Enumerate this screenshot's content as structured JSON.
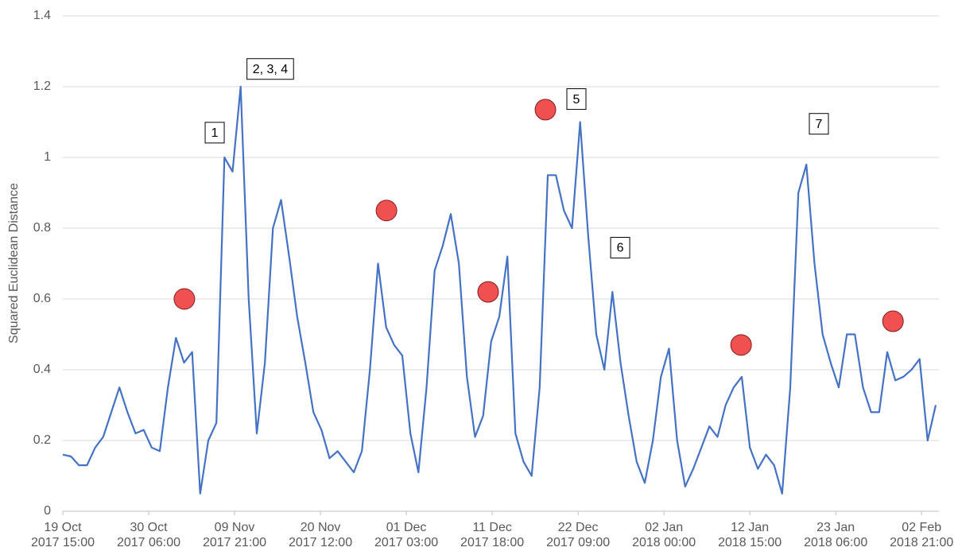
{
  "chart_data": {
    "type": "line",
    "ylabel": "Squared Euclidean Distance",
    "color": "#4472c4",
    "grid": true,
    "ylim": [
      0,
      1.4
    ],
    "yticks": [
      0,
      0.2,
      0.4,
      0.6,
      0.8,
      1,
      1.2,
      1.4
    ],
    "xlim": [
      "2017-10-19 15:00",
      "2018-02-04 15:00"
    ],
    "xticks": [
      {
        "value": "2017-10-19 15:00",
        "label": "19 Oct 2017 15:00"
      },
      {
        "value": "2017-10-30 06:00",
        "label": "30 Oct 2017 06:00"
      },
      {
        "value": "2017-11-09 21:00",
        "label": "09 Nov 2017 21:00"
      },
      {
        "value": "2017-11-20 12:00",
        "label": "20 Nov 2017 12:00"
      },
      {
        "value": "2017-12-01 03:00",
        "label": "01 Dec 2017 03:00"
      },
      {
        "value": "2017-12-11 18:00",
        "label": "11 Dec 2017 18:00"
      },
      {
        "value": "2017-12-22 09:00",
        "label": "22 Dec 2017 09:00"
      },
      {
        "value": "2018-01-02 00:00",
        "label": "02 Jan 2018 00:00"
      },
      {
        "value": "2018-01-12 15:00",
        "label": "12 Jan 2018 15:00"
      },
      {
        "value": "2018-01-23 06:00",
        "label": "23 Jan 2018 06:00"
      },
      {
        "value": "2018-02-02 21:00",
        "label": "02 Feb 2018 21:00"
      }
    ],
    "x": [
      "2017-10-19 15:00",
      "2017-10-20 15:00",
      "2017-10-21 15:00",
      "2017-10-22 15:00",
      "2017-10-23 15:00",
      "2017-10-24 15:00",
      "2017-10-25 15:00",
      "2017-10-26 15:00",
      "2017-10-27 15:00",
      "2017-10-28 15:00",
      "2017-10-29 15:00",
      "2017-10-30 15:00",
      "2017-10-31 15:00",
      "2017-11-01 15:00",
      "2017-11-02 15:00",
      "2017-11-03 15:00",
      "2017-11-04 15:00",
      "2017-11-05 15:00",
      "2017-11-06 15:00",
      "2017-11-07 15:00",
      "2017-11-08 15:00",
      "2017-11-09 15:00",
      "2017-11-10 15:00",
      "2017-11-11 15:00",
      "2017-11-12 15:00",
      "2017-11-13 15:00",
      "2017-11-14 15:00",
      "2017-11-15 15:00",
      "2017-11-16 15:00",
      "2017-11-17 15:00",
      "2017-11-18 15:00",
      "2017-11-19 15:00",
      "2017-11-20 15:00",
      "2017-11-21 15:00",
      "2017-11-22 15:00",
      "2017-11-23 15:00",
      "2017-11-24 15:00",
      "2017-11-25 15:00",
      "2017-11-26 15:00",
      "2017-11-27 15:00",
      "2017-11-28 15:00",
      "2017-11-29 15:00",
      "2017-11-30 15:00",
      "2017-12-01 15:00",
      "2017-12-02 15:00",
      "2017-12-03 15:00",
      "2017-12-04 15:00",
      "2017-12-05 15:00",
      "2017-12-06 15:00",
      "2017-12-07 15:00",
      "2017-12-08 15:00",
      "2017-12-09 15:00",
      "2017-12-10 15:00",
      "2017-12-11 15:00",
      "2017-12-12 15:00",
      "2017-12-13 15:00",
      "2017-12-14 15:00",
      "2017-12-15 15:00",
      "2017-12-16 15:00",
      "2017-12-17 15:00",
      "2017-12-18 15:00",
      "2017-12-19 15:00",
      "2017-12-20 15:00",
      "2017-12-21 15:00",
      "2017-12-22 15:00",
      "2017-12-23 15:00",
      "2017-12-24 15:00",
      "2017-12-25 15:00",
      "2017-12-26 15:00",
      "2017-12-27 15:00",
      "2017-12-28 15:00",
      "2017-12-29 15:00",
      "2017-12-30 15:00",
      "2017-12-31 15:00",
      "2018-01-01 15:00",
      "2018-01-02 15:00",
      "2018-01-03 15:00",
      "2018-01-04 15:00",
      "2018-01-05 15:00",
      "2018-01-06 15:00",
      "2018-01-07 15:00",
      "2018-01-08 15:00",
      "2018-01-09 15:00",
      "2018-01-10 15:00",
      "2018-01-11 15:00",
      "2018-01-12 15:00",
      "2018-01-13 15:00",
      "2018-01-14 15:00",
      "2018-01-15 15:00",
      "2018-01-16 15:00",
      "2018-01-17 15:00",
      "2018-01-18 15:00",
      "2018-01-19 15:00",
      "2018-01-20 15:00",
      "2018-01-21 15:00",
      "2018-01-22 15:00",
      "2018-01-23 15:00",
      "2018-01-24 15:00",
      "2018-01-25 15:00",
      "2018-01-26 15:00",
      "2018-01-27 15:00",
      "2018-01-28 15:00",
      "2018-01-29 15:00",
      "2018-01-30 15:00",
      "2018-01-31 15:00",
      "2018-02-01 15:00",
      "2018-02-02 15:00",
      "2018-02-03 15:00",
      "2018-02-04 15:00"
    ],
    "values": [
      0.16,
      0.155,
      0.13,
      0.13,
      0.18,
      0.21,
      0.28,
      0.35,
      0.28,
      0.22,
      0.23,
      0.18,
      0.17,
      0.35,
      0.49,
      0.42,
      0.45,
      0.05,
      0.2,
      0.25,
      1.0,
      0.96,
      1.2,
      0.6,
      0.22,
      0.42,
      0.8,
      0.88,
      0.72,
      0.55,
      0.42,
      0.28,
      0.23,
      0.15,
      0.17,
      0.14,
      0.11,
      0.17,
      0.4,
      0.7,
      0.52,
      0.47,
      0.44,
      0.22,
      0.11,
      0.35,
      0.68,
      0.75,
      0.84,
      0.7,
      0.38,
      0.21,
      0.27,
      0.48,
      0.55,
      0.72,
      0.22,
      0.14,
      0.1,
      0.35,
      0.95,
      0.95,
      0.85,
      0.8,
      1.1,
      0.78,
      0.5,
      0.4,
      0.62,
      0.42,
      0.27,
      0.14,
      0.08,
      0.2,
      0.38,
      0.46,
      0.2,
      0.07,
      0.12,
      0.18,
      0.24,
      0.21,
      0.3,
      0.35,
      0.38,
      0.18,
      0.12,
      0.16,
      0.13,
      0.05,
      0.35,
      0.9,
      0.98,
      0.7,
      0.5,
      0.42,
      0.35,
      0.5,
      0.5,
      0.35,
      0.28,
      0.28,
      0.45,
      0.37,
      0.38,
      0.4,
      0.43,
      0.2,
      0.3
    ],
    "markers": [
      {
        "x": "2017-11-03 16:00",
        "y": 0.6
      },
      {
        "x": "2017-11-28 16:00",
        "y": 0.85
      },
      {
        "x": "2017-12-11 06:00",
        "y": 0.62
      },
      {
        "x": "2017-12-18 08:00",
        "y": 1.135
      },
      {
        "x": "2018-01-11 13:00",
        "y": 0.47
      },
      {
        "x": "2018-01-30 08:00",
        "y": 0.537
      }
    ],
    "marker_color": "#f05050",
    "annotations": [
      {
        "label": "1",
        "x": "2017-11-07 10:00",
        "y": 1.07
      },
      {
        "label": "2, 3, 4",
        "x": "2017-11-14 07:00",
        "y": 1.25
      },
      {
        "label": "5",
        "x": "2017-12-22 04:00",
        "y": 1.165
      },
      {
        "label": "6",
        "x": "2017-12-27 14:00",
        "y": 0.745
      },
      {
        "label": "7",
        "x": "2018-01-21 04:00",
        "y": 1.095
      }
    ]
  }
}
